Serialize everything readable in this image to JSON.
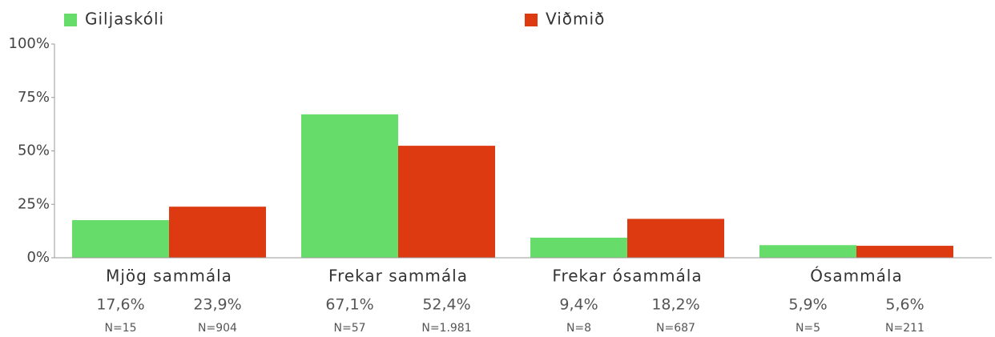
{
  "chart_data": {
    "type": "bar",
    "categories": [
      "Mjög sammála",
      "Frekar sammála",
      "Frekar ósammála",
      "Ósammála"
    ],
    "series": [
      {
        "name": "Giljaskóli",
        "color": "#66dd6a",
        "values": [
          17.6,
          67.1,
          9.4,
          5.9
        ],
        "value_labels": [
          "17,6%",
          "67,1%",
          "9,4%",
          "5,9%"
        ],
        "n_labels": [
          "N=15",
          "N=57",
          "N=8",
          "N=5"
        ]
      },
      {
        "name": "Viðmið",
        "color": "#dd3a12",
        "values": [
          23.9,
          52.4,
          18.2,
          5.6
        ],
        "value_labels": [
          "23,9%",
          "52,4%",
          "18,2%",
          "5,6%"
        ],
        "n_labels": [
          "N=904",
          "N=1.981",
          "N=687",
          "N=211"
        ]
      }
    ],
    "ylim": [
      0,
      100
    ],
    "yticks": [
      {
        "value": 0,
        "label": "0%"
      },
      {
        "value": 25,
        "label": "25%"
      },
      {
        "value": 50,
        "label": "50%"
      },
      {
        "value": 75,
        "label": "75%"
      },
      {
        "value": 100,
        "label": "100%"
      }
    ]
  }
}
